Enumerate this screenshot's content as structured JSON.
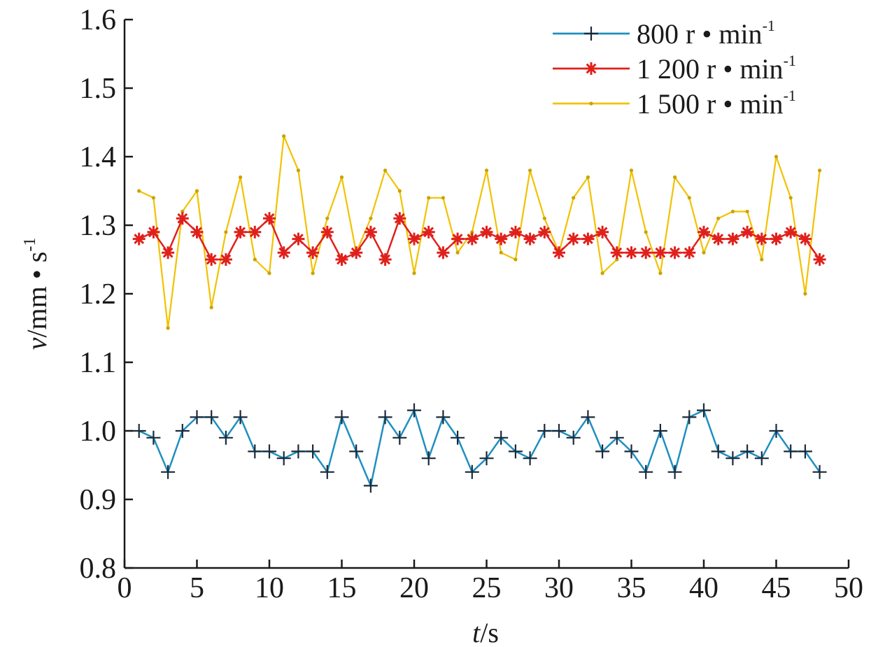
{
  "chart_data": {
    "type": "line",
    "title": "",
    "xlabel": "t/s",
    "xlabel_var": "t",
    "xlabel_unit": "/s",
    "ylabel": "v/mm • s-1",
    "ylabel_var": "v",
    "ylabel_unit": "/mm • s",
    "ylabel_sup": "-1",
    "xlim": [
      0,
      50
    ],
    "ylim": [
      0.8,
      1.6
    ],
    "xticks": [
      0,
      5,
      10,
      15,
      20,
      25,
      30,
      35,
      40,
      45,
      50
    ],
    "xtick_labels": [
      "0",
      "5",
      "10",
      "15",
      "20",
      "25",
      "30",
      "35",
      "40",
      "45",
      "50"
    ],
    "yticks": [
      0.8,
      0.9,
      1.0,
      1.1,
      1.2,
      1.3,
      1.4,
      1.5,
      1.6
    ],
    "ytick_labels": [
      "0.8",
      "0.9",
      "1.0",
      "1.1",
      "1.2",
      "1.3",
      "1.4",
      "1.5",
      "1.6"
    ],
    "grid": false,
    "legend_position": "top-right",
    "x": [
      1,
      2,
      3,
      4,
      5,
      6,
      7,
      8,
      9,
      10,
      11,
      12,
      13,
      14,
      15,
      16,
      17,
      18,
      19,
      20,
      21,
      22,
      23,
      24,
      25,
      26,
      27,
      28,
      29,
      30,
      31,
      32,
      33,
      34,
      35,
      36,
      37,
      38,
      39,
      40,
      41,
      42,
      43,
      44,
      45,
      46,
      47,
      48
    ],
    "series": [
      {
        "name": "800 r • min-1",
        "label_main": "800 r • min",
        "label_sup": "-1",
        "color": "#1f8fbf",
        "marker": "plus",
        "values": [
          1.0,
          0.99,
          0.94,
          1.0,
          1.02,
          1.02,
          0.99,
          1.02,
          0.97,
          0.97,
          0.96,
          0.97,
          0.97,
          0.94,
          1.02,
          0.97,
          0.92,
          1.02,
          0.99,
          1.03,
          0.96,
          1.02,
          0.99,
          0.94,
          0.96,
          0.99,
          0.97,
          0.96,
          1.0,
          1.0,
          0.99,
          1.02,
          0.97,
          0.99,
          0.97,
          0.94,
          1.0,
          0.94,
          1.02,
          1.03,
          0.97,
          0.96,
          0.97,
          0.96,
          1.0,
          0.97,
          0.97,
          0.94
        ]
      },
      {
        "name": "1 200 r • min-1",
        "label_main": "1 200 r • min",
        "label_sup": "-1",
        "color": "#e0201b",
        "marker": "star",
        "values": [
          1.28,
          1.29,
          1.26,
          1.31,
          1.29,
          1.25,
          1.25,
          1.29,
          1.29,
          1.31,
          1.26,
          1.28,
          1.26,
          1.29,
          1.25,
          1.26,
          1.29,
          1.25,
          1.31,
          1.28,
          1.29,
          1.26,
          1.28,
          1.28,
          1.29,
          1.28,
          1.29,
          1.28,
          1.29,
          1.26,
          1.28,
          1.28,
          1.29,
          1.26,
          1.26,
          1.26,
          1.26,
          1.26,
          1.26,
          1.29,
          1.28,
          1.28,
          1.29,
          1.28,
          1.28,
          1.29,
          1.28,
          1.25
        ]
      },
      {
        "name": "1 500 r • min-1",
        "label_main": "1 500 r • min",
        "label_sup": "-1",
        "color": "#f2c200",
        "marker": "dot",
        "values": [
          1.35,
          1.34,
          1.15,
          1.32,
          1.35,
          1.18,
          1.29,
          1.37,
          1.25,
          1.23,
          1.43,
          1.38,
          1.23,
          1.31,
          1.37,
          1.26,
          1.31,
          1.38,
          1.35,
          1.23,
          1.34,
          1.34,
          1.26,
          1.29,
          1.38,
          1.26,
          1.25,
          1.38,
          1.31,
          1.26,
          1.34,
          1.37,
          1.23,
          1.25,
          1.38,
          1.29,
          1.23,
          1.37,
          1.34,
          1.26,
          1.31,
          1.32,
          1.32,
          1.25,
          1.4,
          1.34,
          1.2,
          1.38
        ]
      }
    ]
  }
}
